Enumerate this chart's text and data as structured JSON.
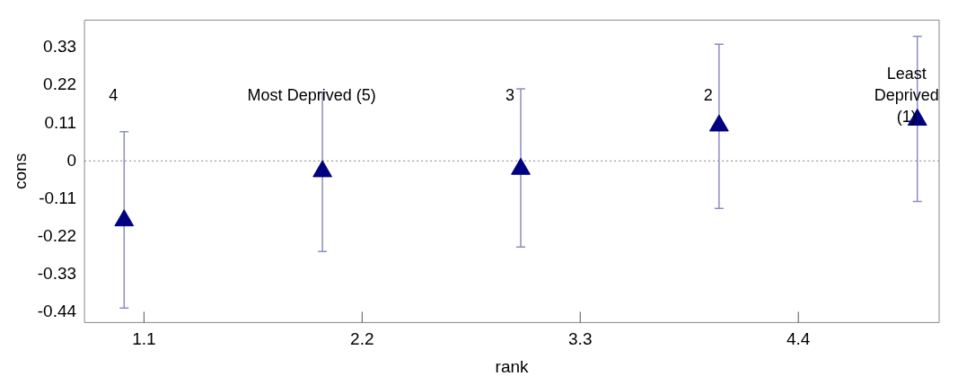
{
  "chart_data": {
    "type": "scatter",
    "xlabel": "rank",
    "ylabel": "cons",
    "x": [
      1,
      2,
      3,
      4,
      5
    ],
    "series": [
      {
        "color": "#000080",
        "values": [
          -0.173,
          -0.03,
          -0.023,
          0.103,
          0.12
        ],
        "errors": [
          [
            -0.428,
            0.085
          ],
          [
            -0.263,
            0.2
          ],
          [
            -0.25,
            0.21
          ],
          [
            -0.138,
            0.34
          ],
          [
            -0.118,
            0.363
          ]
        ]
      }
    ],
    "marker": "triangle",
    "xlim": [
      0.8,
      5.11
    ],
    "xticks": [
      1.1,
      2.2,
      3.3,
      4.4
    ],
    "ylim": [
      -0.47,
      0.41
    ],
    "yticks": [
      -0.44,
      -0.33,
      -0.22,
      -0.11,
      0,
      0.11,
      0.22,
      0.33
    ],
    "grid": false,
    "legend": false,
    "ref_lines": [
      {
        "axis": "y",
        "value": 0,
        "color": "#999999",
        "line_style": "dotted"
      }
    ],
    "annotations": [
      "4",
      "Most Deprived (5)",
      "3",
      "2",
      "Least Deprived (1)"
    ]
  }
}
